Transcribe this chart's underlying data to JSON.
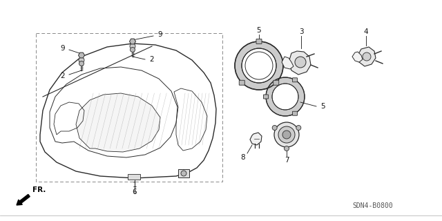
{
  "bg_color": "#ffffff",
  "line_color": "#2a2a2a",
  "part_code": "SDN4-B0800",
  "figsize": [
    6.4,
    3.2
  ],
  "dpi": 100
}
